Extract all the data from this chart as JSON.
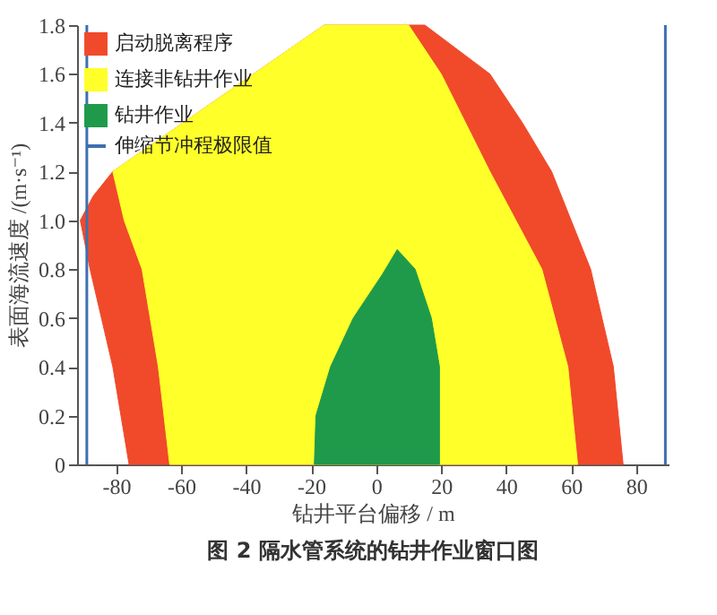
{
  "chart_data": {
    "type": "area",
    "title": "图 2   隔水管系统的钻井作业窗口图",
    "xlabel": "钻井平台偏移 / m",
    "ylabel": "表面海流速度 /(m·s⁻¹)",
    "xlim": [
      -92,
      90
    ],
    "ylim": [
      0,
      1.8
    ],
    "xticks": [
      -80,
      -60,
      -40,
      -20,
      0,
      20,
      40,
      60,
      80
    ],
    "yticks": [
      0,
      0.2,
      0.4,
      0.6,
      0.8,
      {
        "value": 1,
        "label": "1.0"
      },
      1.2,
      1.4,
      1.6,
      1.8
    ],
    "grid": false,
    "legend": "top left",
    "series": [
      {
        "name": "启动脱离程序",
        "color": "#f04a2a",
        "x": [
          -76,
          -81,
          -88,
          -91,
          -87,
          -81,
          -16,
          15,
          35,
          45,
          54,
          66,
          73,
          76,
          -76
        ],
        "values": [
          0,
          0.4,
          0.8,
          1.0,
          1.1,
          1.2,
          1.8,
          1.8,
          1.6,
          1.4,
          1.2,
          0.8,
          0.4,
          0,
          0
        ]
      },
      {
        "name": "连接非钻井作业",
        "color": "#ffff2a",
        "x": [
          -63.5,
          -67,
          -72,
          -77.5,
          -81,
          -16,
          10,
          20,
          35,
          51,
          59,
          62,
          -63.5
        ],
        "values": [
          0,
          0.4,
          0.8,
          1.0,
          1.2,
          1.8,
          1.8,
          1.6,
          1.2,
          0.8,
          0.4,
          0,
          0
        ]
      },
      {
        "name": "钻井作业",
        "color": "#1e9a4a",
        "x": [
          -19,
          -18.5,
          -14,
          -7,
          2,
          6.5,
          12,
          17,
          19.5,
          19.5,
          -19
        ],
        "values": [
          0,
          0.2,
          0.4,
          0.6,
          0.78,
          0.88,
          0.8,
          0.6,
          0.4,
          0,
          0
        ]
      }
    ],
    "ref_lines": [
      {
        "axis": "x",
        "value": -89,
        "label": "伸缩节冲程极限值",
        "color": "#3e6fb0"
      },
      {
        "axis": "x",
        "value": 89,
        "color": "#3e6fb0"
      }
    ]
  }
}
